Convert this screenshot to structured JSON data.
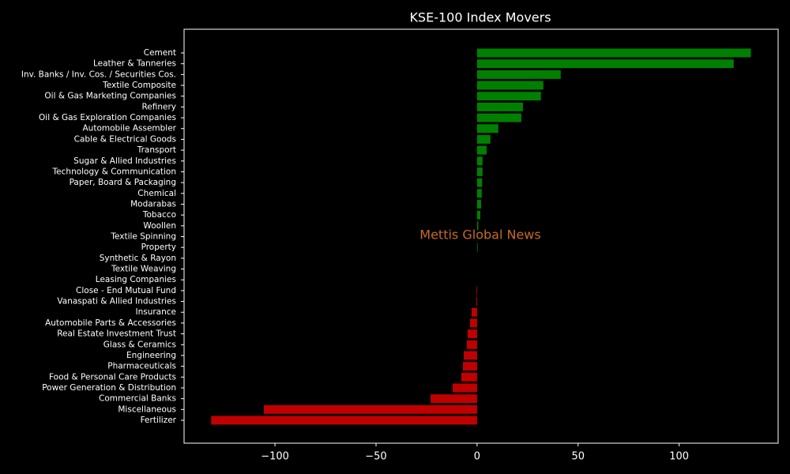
{
  "chart_data": {
    "type": "barh",
    "title": "KSE-100 Index Movers",
    "annotation": "Mettis Global News",
    "categories": [
      "Cement",
      "Leather & Tanneries",
      "Inv. Banks / Inv. Cos. / Securities Cos.",
      "Textile Composite",
      "Oil & Gas Marketing Companies",
      "Refinery",
      "Oil & Gas Exploration Companies",
      "Automobile Assembler",
      "Cable & Electrical Goods",
      "Transport",
      "Sugar & Allied Industries",
      "Technology & Communication",
      "Paper, Board & Packaging",
      "Chemical",
      "Modarabas",
      "Tobacco",
      "Woollen",
      "Textile Spinning",
      "Property",
      "Synthetic & Rayon",
      "Textile Weaving",
      "Leasing Companies",
      "Close - End Mutual Fund",
      "Vanaspati & Allied Industries",
      "Insurance",
      "Automobile Parts & Accessories",
      "Real Estate Investment Trust",
      "Glass & Ceramics",
      "Engineering",
      "Pharmaceuticals",
      "Food & Personal Care Products",
      "Power Generation & Distribution",
      "Commercial Banks",
      "Miscellaneous",
      "Fertilizer"
    ],
    "values": [
      135.5,
      127,
      41.4,
      32.8,
      31.6,
      22.7,
      21.9,
      10.5,
      6.6,
      4.7,
      2.7,
      2.7,
      2.5,
      2.3,
      2.0,
      1.6,
      0.6,
      0.1,
      0.3,
      0,
      0,
      0,
      -0.3,
      -0.4,
      -2.7,
      -3.5,
      -4.7,
      -5.1,
      -6.6,
      -7,
      -7.8,
      -12.1,
      -23,
      -105.5,
      -131.6
    ],
    "positive_color": "#008000",
    "negative_color": "#c00000",
    "annotation_color": "#c8692a",
    "xlim": [
      -145,
      149
    ],
    "xticks": [
      {
        "value": -100,
        "label": "−100"
      },
      {
        "value": -50,
        "label": "−50"
      },
      0,
      50,
      100
    ]
  }
}
